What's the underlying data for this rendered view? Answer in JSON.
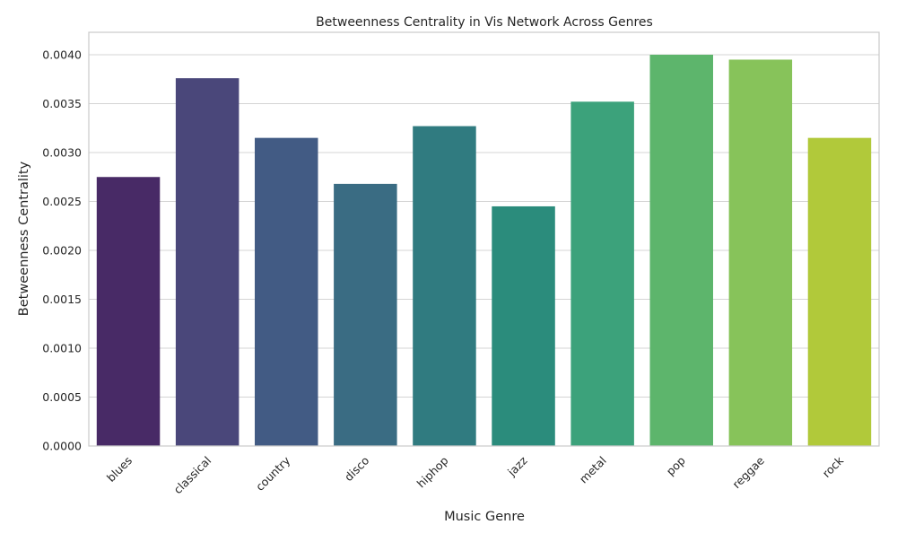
{
  "chart_data": {
    "type": "bar",
    "title": "Betweenness Centrality in Vis Network Across Genres",
    "xlabel": "Music Genre",
    "ylabel": "Betweenness Centrality",
    "categories": [
      "blues",
      "classical",
      "country",
      "disco",
      "hiphop",
      "jazz",
      "metal",
      "pop",
      "reggae",
      "rock"
    ],
    "values": [
      0.00275,
      0.00376,
      0.00315,
      0.00268,
      0.00327,
      0.00245,
      0.00352,
      0.004,
      0.00395,
      0.00315
    ],
    "colors": [
      "#482a66",
      "#4a477a",
      "#425b84",
      "#3a6c83",
      "#307b80",
      "#2b8c7c",
      "#3ca27b",
      "#5db56c",
      "#87c35a",
      "#b1c93a"
    ],
    "ylim": [
      0,
      0.0042
    ],
    "yticks": [
      "0.0000",
      "0.0005",
      "0.0010",
      "0.0015",
      "0.0020",
      "0.0025",
      "0.0030",
      "0.0035",
      "0.0040"
    ],
    "grid": true,
    "legend": "none"
  }
}
